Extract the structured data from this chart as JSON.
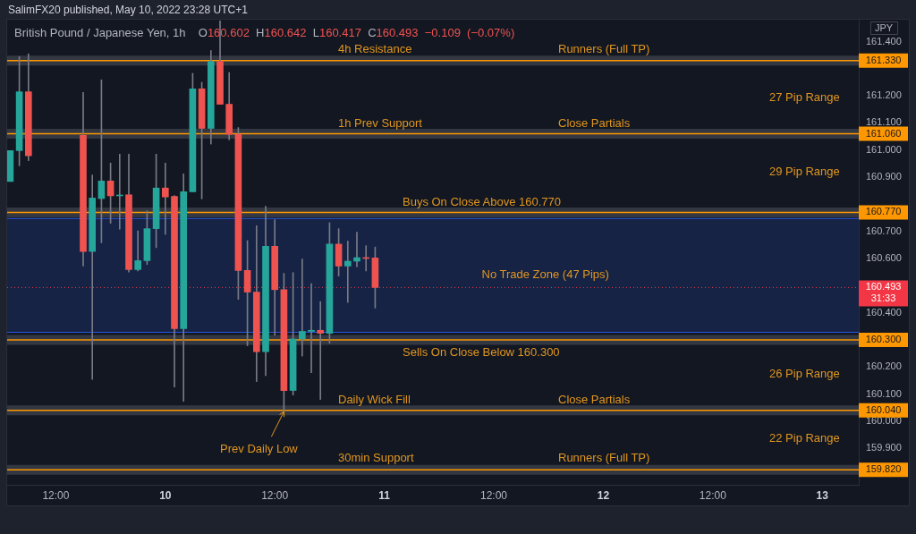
{
  "chart_data": {
    "type": "candlestick",
    "title": "British Pound / Japanese Yen, 1h",
    "subtitle": "SalimFX20 published, May 10, 2022 23:28 UTC+1",
    "ylabel": "JPY",
    "x": [
      "2022-05-09T07:00",
      "2022-05-09T08:00",
      "2022-05-09T09:00",
      "2022-05-09T15:00",
      "2022-05-09T16:00",
      "2022-05-09T17:00",
      "2022-05-09T18:00",
      "2022-05-09T19:00",
      "2022-05-09T20:00",
      "2022-05-09T21:00",
      "2022-05-09T22:00",
      "2022-05-09T23:00",
      "2022-05-10T00:00",
      "2022-05-10T01:00",
      "2022-05-10T02:00",
      "2022-05-10T03:00",
      "2022-05-10T04:00",
      "2022-05-10T05:00",
      "2022-05-10T06:00",
      "2022-05-10T07:00",
      "2022-05-10T08:00",
      "2022-05-10T09:00",
      "2022-05-10T10:00",
      "2022-05-10T11:00",
      "2022-05-10T12:00",
      "2022-05-10T13:00",
      "2022-05-10T14:00",
      "2022-05-10T15:00",
      "2022-05-10T16:00",
      "2022-05-10T17:00",
      "2022-05-10T18:00",
      "2022-05-10T19:00",
      "2022-05-10T20:00",
      "2022-05-10T21:00",
      "2022-05-10T22:00",
      "2022-05-10T23:00"
    ],
    "ohlc": [
      [
        160.884,
        160.998,
        160.884,
        160.998
      ],
      [
        160.998,
        161.345,
        160.942,
        161.215
      ],
      [
        161.215,
        161.355,
        160.961,
        160.979
      ],
      [
        161.054,
        161.213,
        160.572,
        160.626
      ],
      [
        160.626,
        160.908,
        160.154,
        160.823
      ],
      [
        160.821,
        161.259,
        160.658,
        160.886
      ],
      [
        160.886,
        160.952,
        160.73,
        160.831
      ],
      [
        160.831,
        160.985,
        160.708,
        160.833
      ],
      [
        160.835,
        160.985,
        160.55,
        160.559
      ],
      [
        160.559,
        160.702,
        160.554,
        160.592
      ],
      [
        160.592,
        160.776,
        160.578,
        160.71
      ],
      [
        160.71,
        160.985,
        160.64,
        160.86
      ],
      [
        160.86,
        160.952,
        160.689,
        160.827
      ],
      [
        160.829,
        160.832,
        160.126,
        160.341
      ],
      [
        160.341,
        160.912,
        160.073,
        160.846
      ],
      [
        160.846,
        161.283,
        160.846,
        161.226
      ],
      [
        161.226,
        161.25,
        160.82,
        161.08
      ],
      [
        161.08,
        161.367,
        161.022,
        161.327
      ],
      [
        161.327,
        161.477,
        161.169,
        161.169
      ],
      [
        161.169,
        161.286,
        161.038,
        161.058
      ],
      [
        161.058,
        161.083,
        160.449,
        160.556
      ],
      [
        160.556,
        160.666,
        160.278,
        160.476
      ],
      [
        160.476,
        160.721,
        160.146,
        160.256
      ],
      [
        160.256,
        160.793,
        160.168,
        160.645
      ],
      [
        160.645,
        160.743,
        160.317,
        160.485
      ],
      [
        160.485,
        160.545,
        160.035,
        160.113
      ],
      [
        160.113,
        160.548,
        160.096,
        160.303
      ],
      [
        160.303,
        160.598,
        160.24,
        160.331
      ],
      [
        160.331,
        160.507,
        160.179,
        160.335
      ],
      [
        160.335,
        160.441,
        160.08,
        160.324
      ],
      [
        160.324,
        160.732,
        160.287,
        160.653
      ],
      [
        160.653,
        160.71,
        160.535,
        160.572
      ],
      [
        160.572,
        160.664,
        160.438,
        160.59
      ],
      [
        160.59,
        160.697,
        160.57,
        160.603
      ],
      [
        160.603,
        160.647,
        160.554,
        160.6
      ],
      [
        160.602,
        160.642,
        160.417,
        160.493
      ]
    ],
    "colors": [
      "#26a69a",
      "#26a69a",
      "#ef5350",
      "#ef5350",
      "#26a69a",
      "#26a69a",
      "#ef5350",
      "#26a69a",
      "#ef5350",
      "#26a69a",
      "#26a69a",
      "#26a69a",
      "#ef5350",
      "#ef5350",
      "#26a69a",
      "#26a69a",
      "#ef5350",
      "#26a69a",
      "#ef5350",
      "#ef5350",
      "#ef5350",
      "#ef5350",
      "#ef5350",
      "#26a69a",
      "#ef5350",
      "#ef5350",
      "#26a69a",
      "#26a69a",
      "#26a69a",
      "#ef5350",
      "#26a69a",
      "#ef5350",
      "#26a69a",
      "#26a69a",
      "#ef5350",
      "#ef5350"
    ],
    "xlim": [
      "2022-05-09T06:40",
      "2022-05-13T04:00"
    ],
    "xticks": [
      {
        "value": "2022-05-09T12:00",
        "label": "12:00"
      },
      {
        "value": "2022-05-10",
        "label": "10"
      },
      {
        "value": "2022-05-10T12:00",
        "label": "12:00"
      },
      {
        "value": "2022-05-11",
        "label": "11"
      },
      {
        "value": "2022-05-11T12:00",
        "label": "12:00"
      },
      {
        "value": "2022-05-12",
        "label": "12"
      },
      {
        "value": "2022-05-12T12:00",
        "label": "12:00"
      },
      {
        "value": "2022-05-13",
        "label": "13"
      }
    ],
    "ylim": [
      159.765,
      161.481
    ],
    "yticks": [
      {
        "value": 159.9,
        "label": "159.900"
      },
      {
        "value": 160,
        "label": "160.000"
      },
      {
        "value": 160.1,
        "label": "160.100"
      },
      {
        "value": 160.2,
        "label": "160.200"
      },
      {
        "value": 160.4,
        "label": "160.400"
      },
      {
        "value": 160.6,
        "label": "160.600"
      },
      {
        "value": 160.7,
        "label": "160.700"
      },
      {
        "value": 160.9,
        "label": "160.900"
      },
      {
        "value": 161,
        "label": "161.000"
      },
      {
        "value": 161.1,
        "label": "161.100"
      },
      {
        "value": 161.2,
        "label": "161.200"
      },
      {
        "value": 161.4,
        "label": "161.400"
      }
    ],
    "ref_lines": [
      {
        "axis": "y",
        "value": 161.33,
        "label": "161.330",
        "color": "#ff9800"
      },
      {
        "axis": "y",
        "value": 161.06,
        "label": "161.060",
        "color": "#ff9800"
      },
      {
        "axis": "y",
        "value": 160.77,
        "label": "160.770",
        "color": "#ff9800"
      },
      {
        "axis": "y",
        "value": 160.3,
        "label": "160.300",
        "color": "#ff9800"
      },
      {
        "axis": "y",
        "value": 160.04,
        "label": "160.040",
        "color": "#ff9800"
      },
      {
        "axis": "y",
        "value": 159.82,
        "label": "159.820",
        "color": "#ff9800"
      },
      {
        "axis": "y",
        "value": 160.493,
        "label": "160.493\n31:33",
        "color": "#f23645",
        "line_style": "dotted"
      }
    ],
    "bands": [
      {
        "axis": "y",
        "from": 160.326,
        "to": 160.749,
        "label": "No Trade Zone (47 Pips)",
        "color": "#2962ff"
      }
    ],
    "annotations": [
      "O160.602 H160.642 L160.417 C160.493 −0.109 (−0.07%)",
      "4h Resistance",
      "Runners (Full TP)",
      "27 Pip Range",
      "1h Prev Support",
      "Close Partials",
      "29 Pip Range",
      "Buys On Close Above 160.770",
      "Sells On Close Below 160.300",
      "26 Pip Range",
      "Daily Wick Fill",
      "Close Partials",
      "22 Pip Range",
      "30min Support",
      "Runners (Full TP)",
      {
        "text": "Prev Daily Low",
        "x": "2022-05-10T13:00",
        "y": 160.035
      }
    ]
  }
}
